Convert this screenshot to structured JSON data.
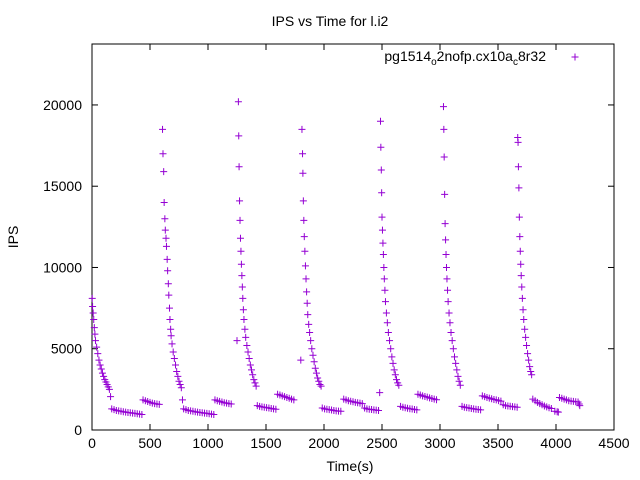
{
  "chart_data": {
    "type": "scatter",
    "title": "IPS vs Time for l.i2",
    "xlabel": "Time(s)",
    "ylabel": "IPS",
    "xlim": [
      0,
      4500
    ],
    "ylim": [
      0,
      23750
    ],
    "xticks": [
      0,
      500,
      1000,
      1500,
      2000,
      2500,
      3000,
      3500,
      4000,
      4500
    ],
    "yticks": [
      0,
      5000,
      10000,
      15000,
      20000
    ],
    "grid": false,
    "legend_position": "top-right",
    "marker": "+",
    "series": [
      {
        "name": "pg1514_o2nofp.cx10a_c8r32",
        "legend_base": "pg1514",
        "legend_parts": [
          {
            "text": "o",
            "sub": true
          },
          {
            "text": "2nofp.cx10a",
            "sub": false
          },
          {
            "text": "c",
            "sub": true
          },
          {
            "text": "8r32",
            "sub": false
          }
        ],
        "color": "#9400d3",
        "points": [
          [
            2,
            8100
          ],
          [
            5,
            7600
          ],
          [
            10,
            7200
          ],
          [
            15,
            6800
          ],
          [
            20,
            6300
          ],
          [
            25,
            5900
          ],
          [
            30,
            5500
          ],
          [
            40,
            5100
          ],
          [
            50,
            4700
          ],
          [
            60,
            4300
          ],
          [
            70,
            4000
          ],
          [
            80,
            3750
          ],
          [
            90,
            3500
          ],
          [
            100,
            3300
          ],
          [
            110,
            3100
          ],
          [
            120,
            2950
          ],
          [
            130,
            2800
          ],
          [
            140,
            2650
          ],
          [
            150,
            2500
          ],
          [
            160,
            2050
          ],
          [
            170,
            1300
          ],
          [
            190,
            1250
          ],
          [
            210,
            1200
          ],
          [
            230,
            1180
          ],
          [
            250,
            1150
          ],
          [
            270,
            1120
          ],
          [
            290,
            1100
          ],
          [
            310,
            1080
          ],
          [
            330,
            1060
          ],
          [
            350,
            1040
          ],
          [
            370,
            1020
          ],
          [
            390,
            1000
          ],
          [
            410,
            980
          ],
          [
            430,
            950
          ],
          [
            440,
            1850
          ],
          [
            460,
            1800
          ],
          [
            480,
            1750
          ],
          [
            500,
            1700
          ],
          [
            520,
            1650
          ],
          [
            540,
            1620
          ],
          [
            560,
            1600
          ],
          [
            580,
            1580
          ],
          [
            608,
            18500
          ],
          [
            612,
            17000
          ],
          [
            618,
            15900
          ],
          [
            622,
            14000
          ],
          [
            628,
            13000
          ],
          [
            632,
            12300
          ],
          [
            638,
            11800
          ],
          [
            642,
            11300
          ],
          [
            648,
            10500
          ],
          [
            652,
            9800
          ],
          [
            658,
            9000
          ],
          [
            662,
            8300
          ],
          [
            668,
            7500
          ],
          [
            672,
            6800
          ],
          [
            678,
            6200
          ],
          [
            682,
            5800
          ],
          [
            690,
            5300
          ],
          [
            700,
            4800
          ],
          [
            710,
            4400
          ],
          [
            720,
            4000
          ],
          [
            730,
            3600
          ],
          [
            740,
            3300
          ],
          [
            750,
            3000
          ],
          [
            760,
            2800
          ],
          [
            770,
            2600
          ],
          [
            780,
            1850
          ],
          [
            790,
            1300
          ],
          [
            810,
            1250
          ],
          [
            830,
            1200
          ],
          [
            850,
            1180
          ],
          [
            870,
            1150
          ],
          [
            890,
            1120
          ],
          [
            910,
            1100
          ],
          [
            930,
            1080
          ],
          [
            950,
            1060
          ],
          [
            970,
            1040
          ],
          [
            990,
            1020
          ],
          [
            1010,
            1000
          ],
          [
            1030,
            980
          ],
          [
            1050,
            950
          ],
          [
            1060,
            1850
          ],
          [
            1080,
            1800
          ],
          [
            1100,
            1760
          ],
          [
            1120,
            1720
          ],
          [
            1140,
            1680
          ],
          [
            1160,
            1650
          ],
          [
            1180,
            1620
          ],
          [
            1200,
            1600
          ],
          [
            1250,
            5500
          ],
          [
            1262,
            20200
          ],
          [
            1265,
            18100
          ],
          [
            1268,
            16200
          ],
          [
            1272,
            14100
          ],
          [
            1276,
            12900
          ],
          [
            1280,
            11800
          ],
          [
            1284,
            11000
          ],
          [
            1288,
            10200
          ],
          [
            1292,
            9500
          ],
          [
            1296,
            8800
          ],
          [
            1300,
            8100
          ],
          [
            1305,
            7400
          ],
          [
            1310,
            6800
          ],
          [
            1318,
            6200
          ],
          [
            1325,
            5700
          ],
          [
            1335,
            5200
          ],
          [
            1345,
            4800
          ],
          [
            1355,
            4400
          ],
          [
            1365,
            4000
          ],
          [
            1375,
            3700
          ],
          [
            1385,
            3400
          ],
          [
            1395,
            3100
          ],
          [
            1405,
            2900
          ],
          [
            1415,
            2700
          ],
          [
            1425,
            1500
          ],
          [
            1445,
            1450
          ],
          [
            1465,
            1420
          ],
          [
            1485,
            1400
          ],
          [
            1505,
            1380
          ],
          [
            1525,
            1350
          ],
          [
            1545,
            1320
          ],
          [
            1565,
            1300
          ],
          [
            1585,
            1280
          ],
          [
            1600,
            2200
          ],
          [
            1620,
            2150
          ],
          [
            1640,
            2100
          ],
          [
            1660,
            2050
          ],
          [
            1680,
            2000
          ],
          [
            1700,
            1950
          ],
          [
            1720,
            1900
          ],
          [
            1740,
            1850
          ],
          [
            1810,
            18500
          ],
          [
            1815,
            17000
          ],
          [
            1818,
            15800
          ],
          [
            1822,
            14100
          ],
          [
            1826,
            12900
          ],
          [
            1830,
            11900
          ],
          [
            1835,
            11000
          ],
          [
            1840,
            10100
          ],
          [
            1845,
            9300
          ],
          [
            1850,
            8500
          ],
          [
            1855,
            7800
          ],
          [
            1860,
            7100
          ],
          [
            1868,
            6500
          ],
          [
            1876,
            6000
          ],
          [
            1885,
            5500
          ],
          [
            1895,
            5000
          ],
          [
            1905,
            4600
          ],
          [
            1915,
            4200
          ],
          [
            1925,
            3800
          ],
          [
            1935,
            3500
          ],
          [
            1945,
            3200
          ],
          [
            1955,
            3000
          ],
          [
            1965,
            2800
          ],
          [
            1975,
            2700
          ],
          [
            1800,
            4300
          ],
          [
            1985,
            1350
          ],
          [
            2005,
            1300
          ],
          [
            2025,
            1280
          ],
          [
            2045,
            1250
          ],
          [
            2065,
            1230
          ],
          [
            2085,
            1200
          ],
          [
            2105,
            1180
          ],
          [
            2125,
            1160
          ],
          [
            2145,
            1150
          ],
          [
            2170,
            1900
          ],
          [
            2190,
            1850
          ],
          [
            2210,
            1800
          ],
          [
            2230,
            1770
          ],
          [
            2250,
            1740
          ],
          [
            2270,
            1700
          ],
          [
            2290,
            1680
          ],
          [
            2310,
            1650
          ],
          [
            2330,
            1620
          ],
          [
            2350,
            1350
          ],
          [
            2370,
            1300
          ],
          [
            2390,
            1280
          ],
          [
            2410,
            1260
          ],
          [
            2430,
            1240
          ],
          [
            2450,
            1220
          ],
          [
            2470,
            1200
          ],
          [
            2480,
            2300
          ],
          [
            2487,
            19000
          ],
          [
            2490,
            17400
          ],
          [
            2494,
            16000
          ],
          [
            2497,
            14600
          ],
          [
            2500,
            13100
          ],
          [
            2504,
            12300
          ],
          [
            2508,
            11500
          ],
          [
            2512,
            10800
          ],
          [
            2516,
            10000
          ],
          [
            2520,
            9300
          ],
          [
            2525,
            8600
          ],
          [
            2530,
            7900
          ],
          [
            2538,
            7200
          ],
          [
            2546,
            6600
          ],
          [
            2555,
            6000
          ],
          [
            2565,
            5500
          ],
          [
            2575,
            5000
          ],
          [
            2585,
            4500
          ],
          [
            2595,
            4100
          ],
          [
            2605,
            3700
          ],
          [
            2615,
            3400
          ],
          [
            2625,
            3100
          ],
          [
            2635,
            2900
          ],
          [
            2645,
            2750
          ],
          [
            2660,
            1450
          ],
          [
            2680,
            1400
          ],
          [
            2700,
            1370
          ],
          [
            2720,
            1340
          ],
          [
            2740,
            1310
          ],
          [
            2760,
            1290
          ],
          [
            2780,
            1260
          ],
          [
            2800,
            1240
          ],
          [
            2810,
            2200
          ],
          [
            2830,
            2150
          ],
          [
            2850,
            2100
          ],
          [
            2870,
            2060
          ],
          [
            2890,
            2020
          ],
          [
            2910,
            1980
          ],
          [
            2930,
            1940
          ],
          [
            2950,
            1900
          ],
          [
            2970,
            1860
          ],
          [
            3030,
            19900
          ],
          [
            3033,
            18500
          ],
          [
            3036,
            16800
          ],
          [
            3040,
            14500
          ],
          [
            3044,
            12700
          ],
          [
            3048,
            11700
          ],
          [
            3052,
            10800
          ],
          [
            3056,
            10000
          ],
          [
            3060,
            9300
          ],
          [
            3065,
            8600
          ],
          [
            3070,
            7900
          ],
          [
            3078,
            7200
          ],
          [
            3086,
            6600
          ],
          [
            3095,
            6000
          ],
          [
            3105,
            5500
          ],
          [
            3115,
            5000
          ],
          [
            3125,
            4500
          ],
          [
            3135,
            4100
          ],
          [
            3145,
            3700
          ],
          [
            3155,
            3300
          ],
          [
            3165,
            3000
          ],
          [
            3175,
            2750
          ],
          [
            3190,
            1450
          ],
          [
            3210,
            1400
          ],
          [
            3230,
            1380
          ],
          [
            3250,
            1350
          ],
          [
            3270,
            1320
          ],
          [
            3290,
            1300
          ],
          [
            3310,
            1280
          ],
          [
            3330,
            1260
          ],
          [
            3350,
            1240
          ],
          [
            3365,
            2100
          ],
          [
            3385,
            2050
          ],
          [
            3405,
            2000
          ],
          [
            3425,
            1960
          ],
          [
            3445,
            1920
          ],
          [
            3465,
            1880
          ],
          [
            3485,
            1850
          ],
          [
            3505,
            1810
          ],
          [
            3525,
            1780
          ],
          [
            3545,
            1550
          ],
          [
            3565,
            1500
          ],
          [
            3585,
            1480
          ],
          [
            3605,
            1460
          ],
          [
            3625,
            1440
          ],
          [
            3645,
            1420
          ],
          [
            3665,
            1400
          ],
          [
            3670,
            18000
          ],
          [
            3673,
            17700
          ],
          [
            3676,
            16200
          ],
          [
            3680,
            14900
          ],
          [
            3684,
            13100
          ],
          [
            3688,
            11900
          ],
          [
            3692,
            11000
          ],
          [
            3696,
            10200
          ],
          [
            3700,
            9500
          ],
          [
            3705,
            8800
          ],
          [
            3710,
            8100
          ],
          [
            3716,
            7400
          ],
          [
            3722,
            6800
          ],
          [
            3730,
            6200
          ],
          [
            3738,
            5700
          ],
          [
            3746,
            5200
          ],
          [
            3755,
            4700
          ],
          [
            3764,
            4300
          ],
          [
            3773,
            3900
          ],
          [
            3782,
            3600
          ],
          [
            3790,
            3400
          ],
          [
            3800,
            1900
          ],
          [
            3820,
            1800
          ],
          [
            3840,
            1700
          ],
          [
            3860,
            1620
          ],
          [
            3880,
            1550
          ],
          [
            3900,
            1480
          ],
          [
            3920,
            1420
          ],
          [
            3940,
            1370
          ],
          [
            3960,
            1320
          ],
          [
            3990,
            1150
          ],
          [
            4010,
            1120
          ],
          [
            4020,
            1100
          ],
          [
            4030,
            2000
          ],
          [
            4050,
            1950
          ],
          [
            4070,
            1900
          ],
          [
            4090,
            1850
          ],
          [
            4110,
            1800
          ],
          [
            4130,
            1780
          ],
          [
            4150,
            1760
          ],
          [
            4170,
            1740
          ],
          [
            4190,
            1720
          ],
          [
            4200,
            1600
          ],
          [
            4205,
            1500
          ]
        ]
      }
    ]
  }
}
